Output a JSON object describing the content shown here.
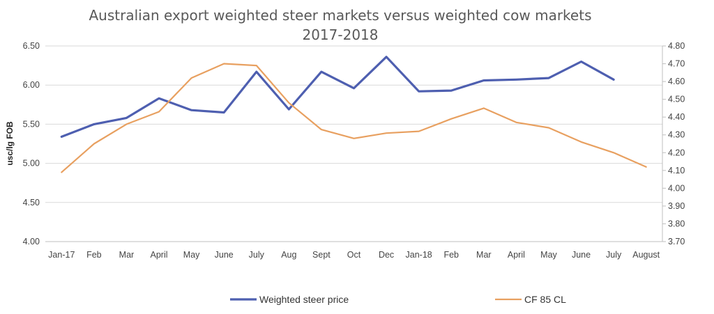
{
  "chart_data": {
    "type": "line",
    "title": "Australian export weighted steer markets versus weighted cow markets",
    "subtitle": "2017-2018",
    "ylabel": "usc/lg FOB",
    "y2label": "",
    "categories": [
      "Jan-17",
      "Feb",
      "Mar",
      "April",
      "May",
      "June",
      "July",
      "Aug",
      "Sept",
      "Oct",
      "Dec",
      "Jan-18",
      "Feb",
      "Mar",
      "April",
      "May",
      "June",
      "July",
      "August"
    ],
    "ylim": [
      4.0,
      6.5
    ],
    "y2lim": [
      3.7,
      4.8
    ],
    "yticks": [
      "4.00",
      "4.50",
      "5.00",
      "5.50",
      "6.00",
      "6.50"
    ],
    "y2ticks": [
      "3.70",
      "3.80",
      "3.90",
      "4.00",
      "4.10",
      "4.20",
      "4.30",
      "4.40",
      "4.50",
      "4.60",
      "4.70",
      "4.80"
    ],
    "grid": true,
    "legend_position": "bottom",
    "series": [
      {
        "name": "Weighted steer price",
        "axis": "left",
        "color": "#4e5fb0",
        "values": [
          5.34,
          5.5,
          5.58,
          5.83,
          5.68,
          5.65,
          6.17,
          5.69,
          6.17,
          5.96,
          6.36,
          5.92,
          5.93,
          6.06,
          6.07,
          6.09,
          6.3,
          6.07,
          null
        ]
      },
      {
        "name": "CF 85 CL",
        "axis": "right",
        "color": "#e8a060",
        "values": [
          4.09,
          4.25,
          4.36,
          4.43,
          4.62,
          4.7,
          4.69,
          4.48,
          4.33,
          4.28,
          4.31,
          4.32,
          4.39,
          4.45,
          4.37,
          4.34,
          4.26,
          4.2,
          4.12
        ]
      }
    ]
  }
}
